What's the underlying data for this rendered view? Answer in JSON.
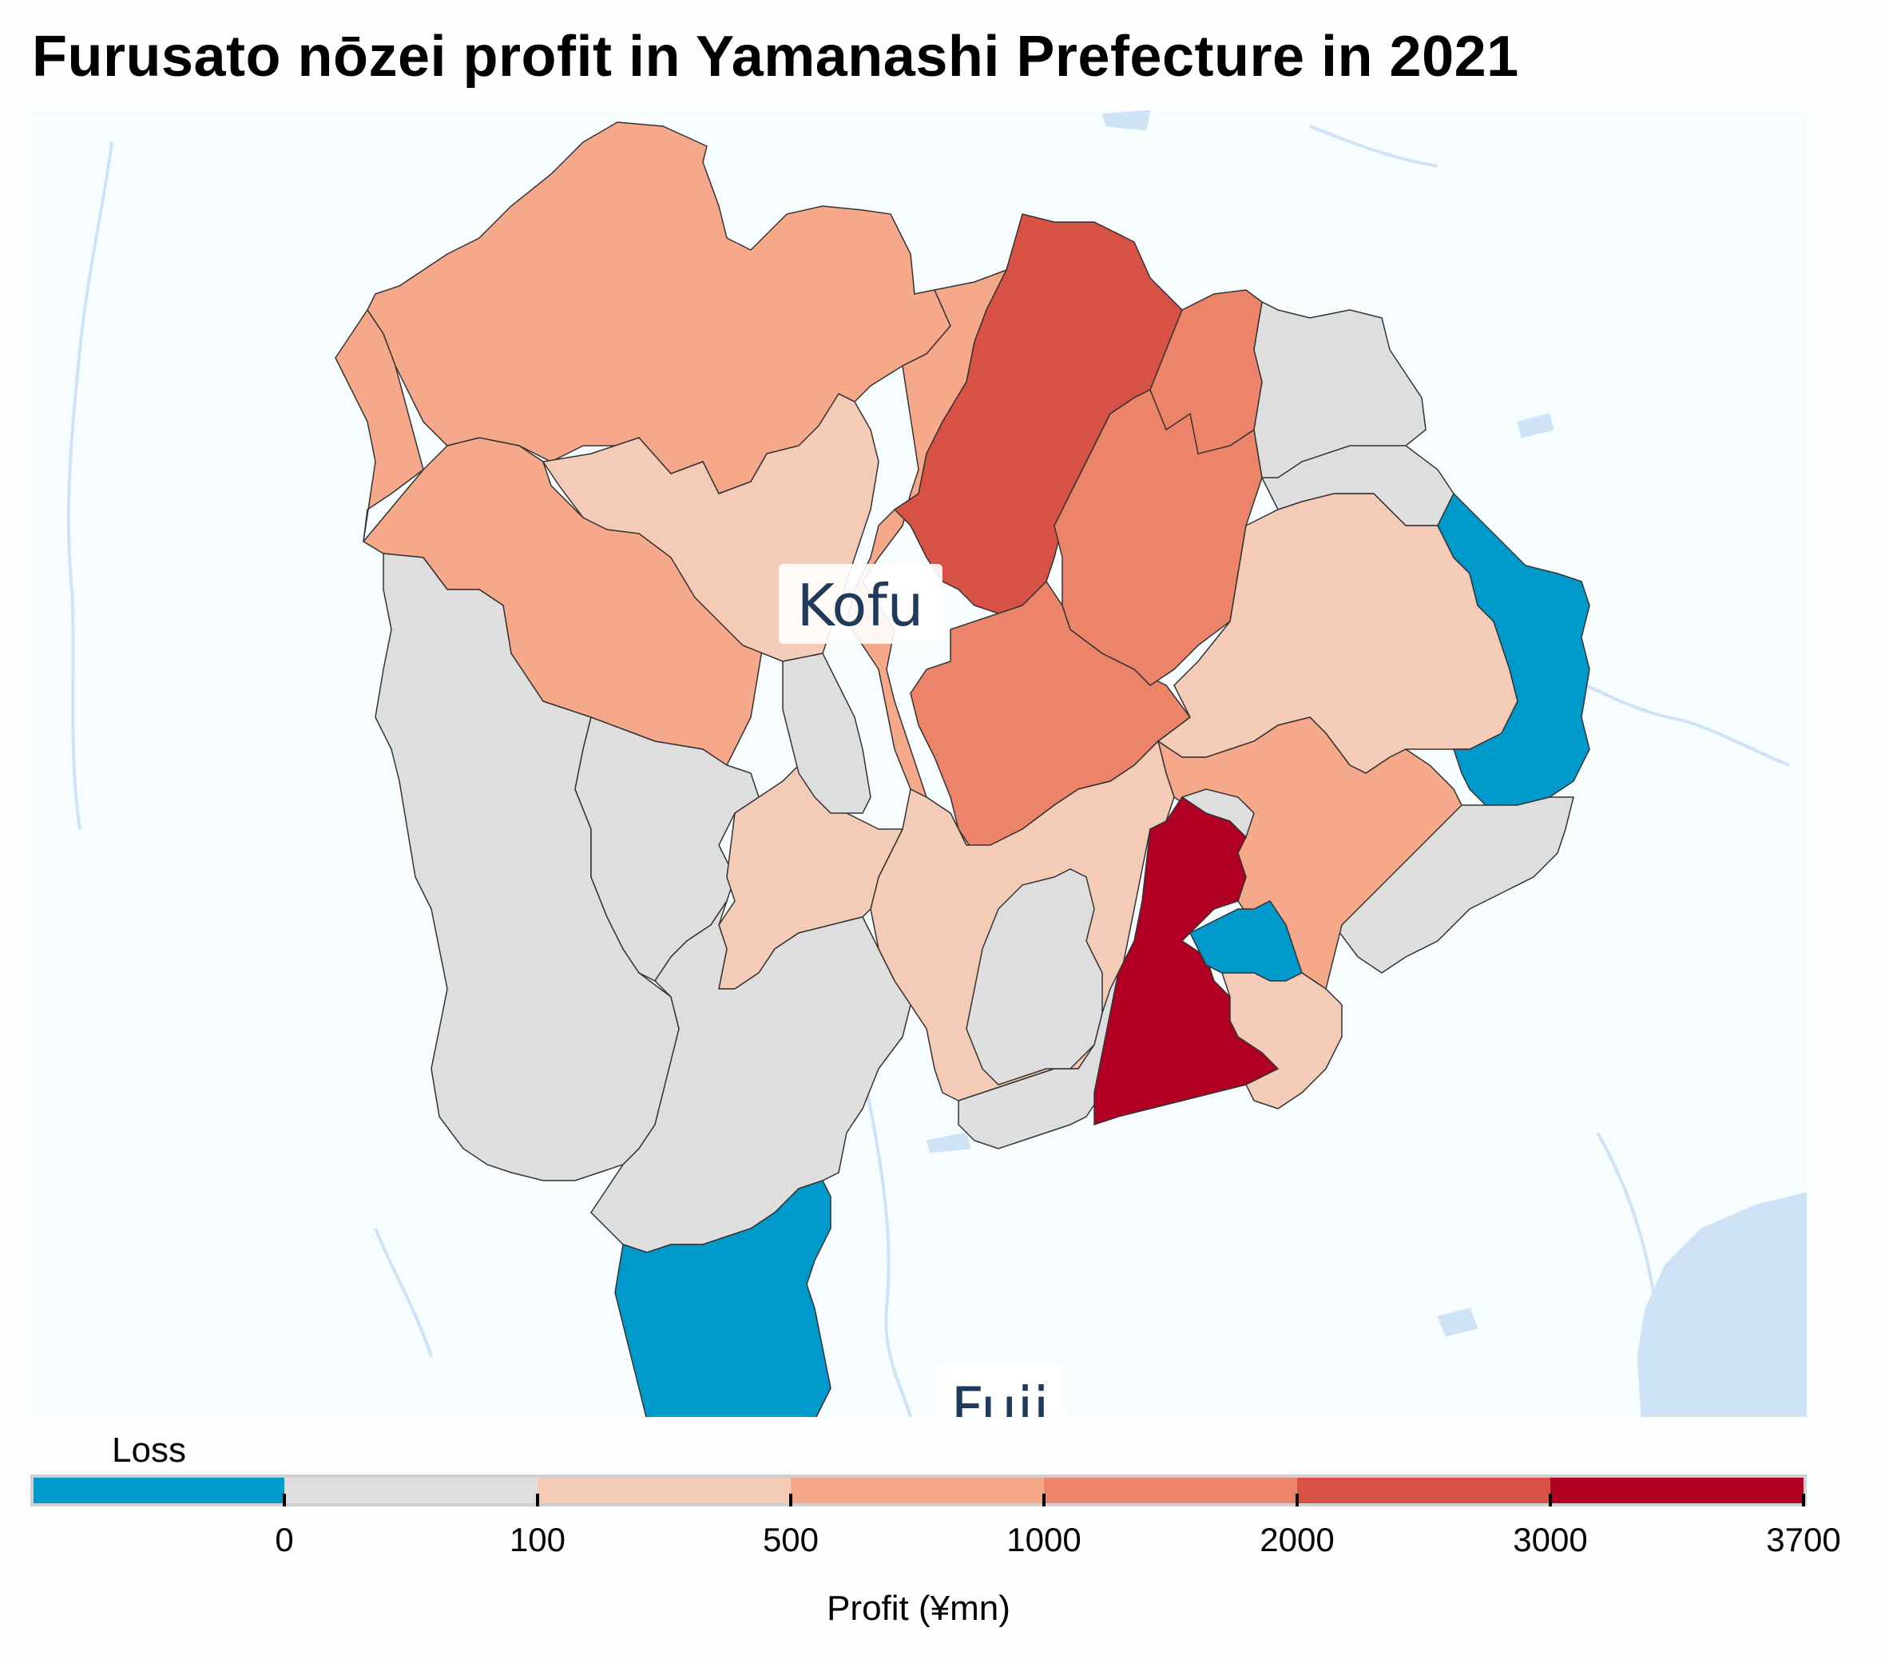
{
  "title": "Furusato nōzei profit in Yamanashi Prefecture in 2021",
  "map": {
    "labels": {
      "kofu": "Kofu",
      "fuji": "Fuji"
    },
    "colors": {
      "water": "#cfe3f6",
      "land": "#f7fcff",
      "border": "#333333"
    }
  },
  "legend": {
    "loss_label": "Loss",
    "axis_label": "Profit (¥mn)",
    "ticks": [
      "0",
      "100",
      "500",
      "1000",
      "2000",
      "3000",
      "3700"
    ],
    "bins": [
      {
        "name": "loss",
        "color": "#0099cc"
      },
      {
        "name": "0-100",
        "color": "#dedede"
      },
      {
        "name": "100-500",
        "color": "#f3cbb7"
      },
      {
        "name": "500-1000",
        "color": "#f6a98a"
      },
      {
        "name": "1000-2000",
        "color": "#ec846a"
      },
      {
        "name": "2000-3000",
        "color": "#d75244"
      },
      {
        "name": "3000-3700",
        "color": "#b20025"
      }
    ]
  }
}
